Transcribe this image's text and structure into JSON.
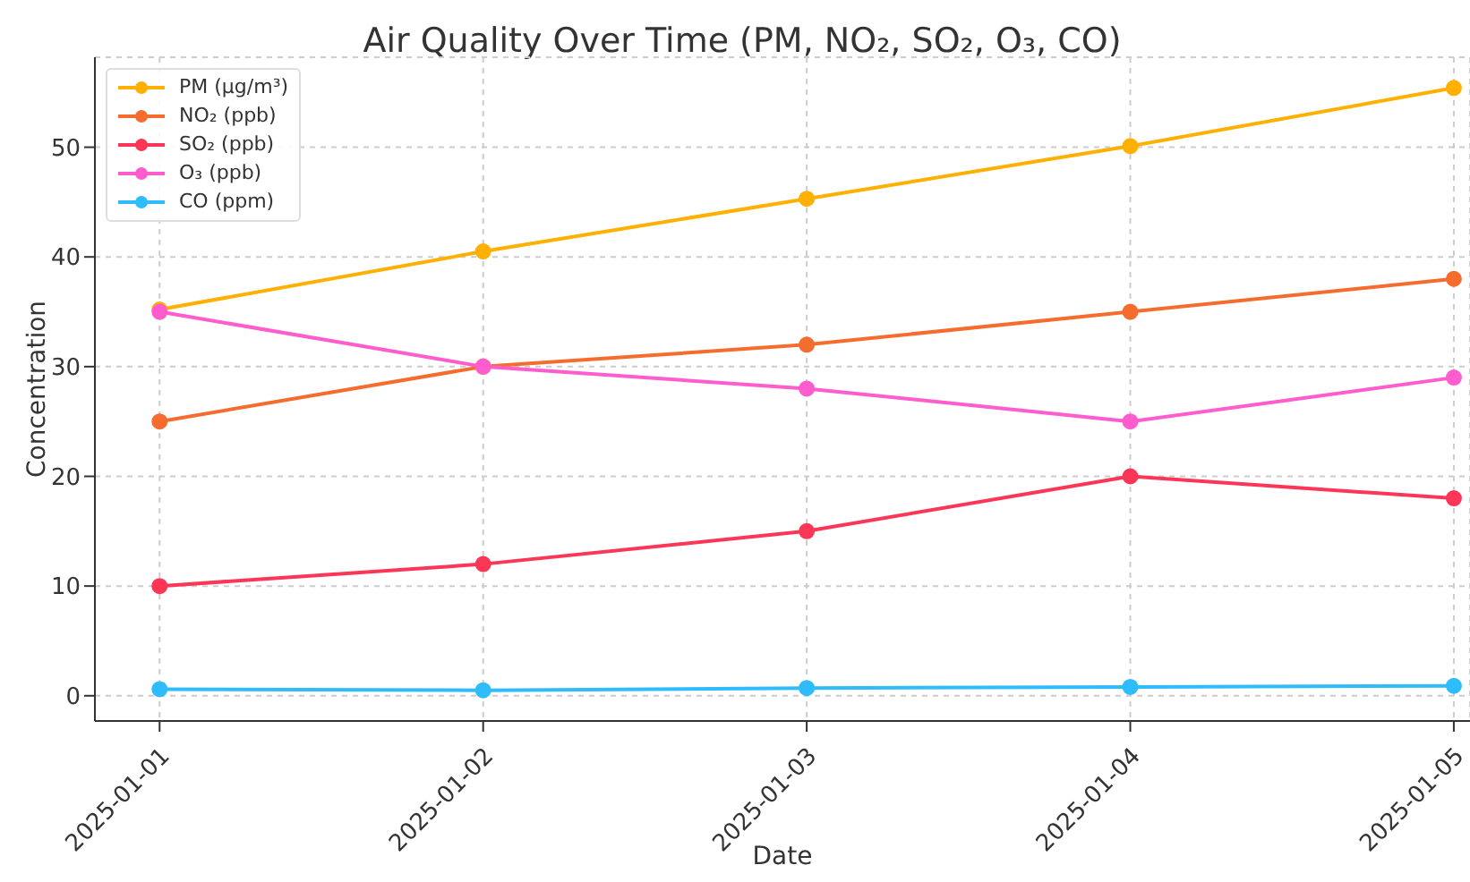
{
  "chart_data": {
    "type": "line",
    "title": "Air Quality Over Time (PM, NO₂, SO₂, O₃, CO)",
    "xlabel": "Date",
    "ylabel": "Concentration",
    "categories": [
      "2025-01-01",
      "2025-01-02",
      "2025-01-03",
      "2025-01-04",
      "2025-01-05"
    ],
    "series": [
      {
        "name": "PM (µg/m³)",
        "color": "#ffb000",
        "values": [
          35.2,
          40.5,
          45.3,
          50.1,
          55.4
        ]
      },
      {
        "name": "NO₂ (ppb)",
        "color": "#f46d2e",
        "values": [
          25,
          30,
          32,
          35,
          38
        ]
      },
      {
        "name": "SO₂ (ppb)",
        "color": "#fc3657",
        "values": [
          10,
          12,
          15,
          20,
          18
        ]
      },
      {
        "name": "O₃ (ppb)",
        "color": "#ff5ccd",
        "values": [
          35,
          30,
          28,
          25,
          29
        ]
      },
      {
        "name": "CO (ppm)",
        "color": "#2ebcfc",
        "values": [
          0.6,
          0.5,
          0.7,
          0.8,
          0.9
        ]
      }
    ],
    "ylim": [
      -2.3,
      58.2
    ],
    "yticks": [
      0,
      10,
      20,
      30,
      40,
      50
    ],
    "grid": true,
    "legend": "top left",
    "marker": "circle",
    "line_style": "solid"
  }
}
